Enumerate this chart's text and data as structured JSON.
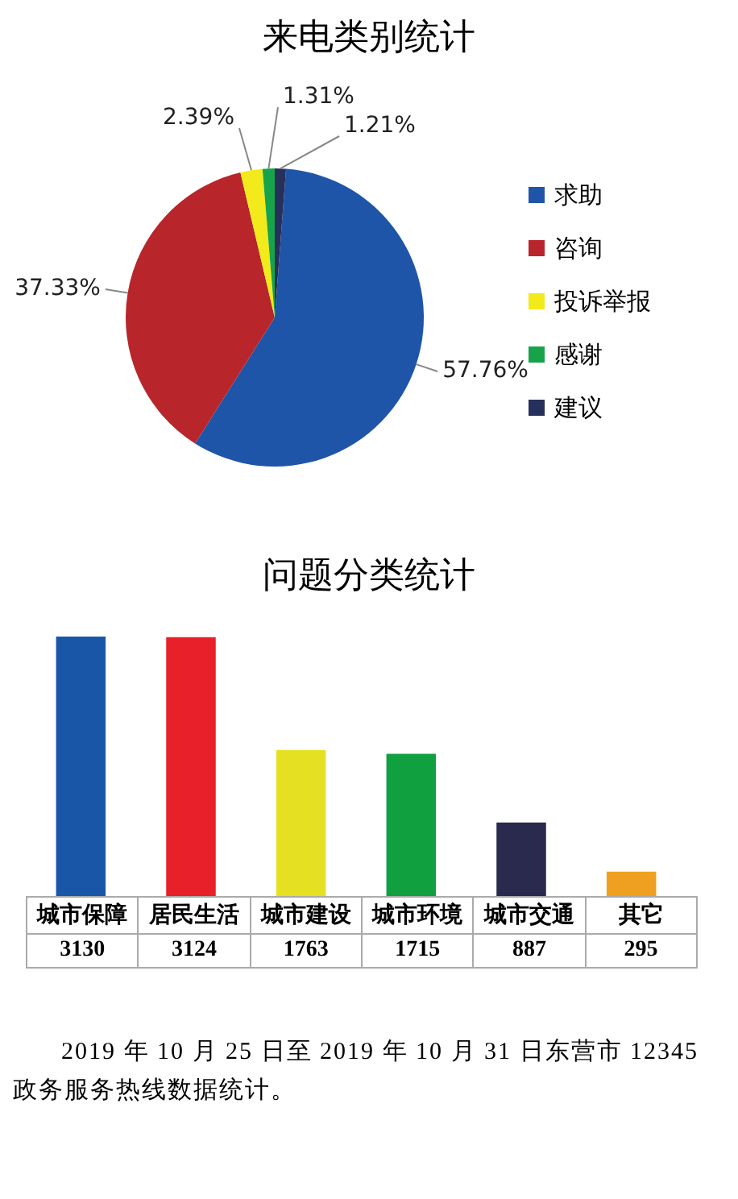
{
  "chart_data": [
    {
      "type": "pie",
      "title": "来电类别统计",
      "categories": [
        "求助",
        "咨询",
        "投诉举报",
        "感谢",
        "建议"
      ],
      "values": [
        57.76,
        37.33,
        2.39,
        1.31,
        1.21
      ],
      "colors": [
        "#1f55a8",
        "#b8252b",
        "#f2ea1a",
        "#16a34a",
        "#26305a"
      ],
      "value_labels": [
        "57.76%",
        "37.33%",
        "2.39%",
        "1.31%",
        "1.21%"
      ],
      "legend": "right"
    },
    {
      "type": "bar",
      "title": "问题分类统计",
      "categories": [
        "城市保障",
        "居民生活",
        "城市建设",
        "城市环境",
        "城市交通",
        "其它"
      ],
      "values": [
        3130,
        3124,
        1763,
        1715,
        887,
        295
      ],
      "colors": [
        "#1a56a8",
        "#e8202a",
        "#e6e022",
        "#10a040",
        "#2a2a4e",
        "#f0a020"
      ],
      "data_labels": true,
      "annotations": [
        "2019 年 10 月 25 日至 2019 年 10 月 31 日东营市 12345 政务服务热线数据统计。"
      ]
    }
  ]
}
